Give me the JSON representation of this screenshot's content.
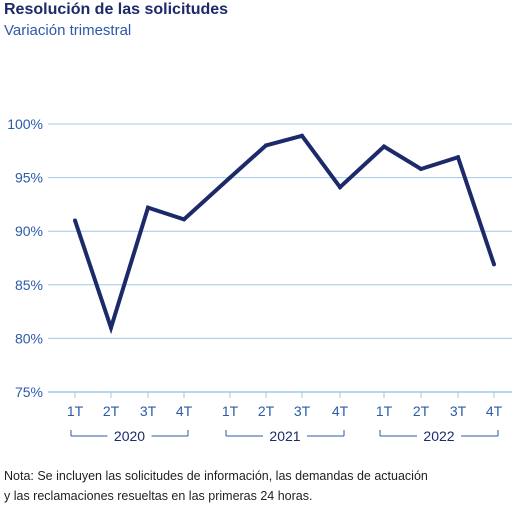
{
  "header": {
    "title": "Resolución de las solicitudes",
    "subtitle": "Variación trimestral"
  },
  "colors": {
    "title": "#1c2a6b",
    "subtitle": "#2b5aa8",
    "line": "#1c2a6b",
    "grid": "#9ec8e6",
    "axis_text": "#2b5aa8"
  },
  "chart_data": {
    "type": "line",
    "title": "Resolución de las solicitudes",
    "subtitle": "Variación trimestral",
    "categories": [
      "1T",
      "2T",
      "3T",
      "4T",
      "1T",
      "2T",
      "3T",
      "4T",
      "1T",
      "2T",
      "3T",
      "4T"
    ],
    "groups": [
      {
        "label": "2020",
        "categories": [
          "1T",
          "2T",
          "3T",
          "4T"
        ]
      },
      {
        "label": "2021",
        "categories": [
          "1T",
          "2T",
          "3T",
          "4T"
        ]
      },
      {
        "label": "2022",
        "categories": [
          "1T",
          "2T",
          "3T",
          "4T"
        ]
      }
    ],
    "values": [
      91.0,
      81.0,
      92.2,
      91.1,
      95.0,
      98.0,
      98.9,
      94.1,
      97.9,
      95.8,
      96.9,
      86.9
    ],
    "ylim": [
      75,
      100
    ],
    "yticks": [
      "75%",
      "80%",
      "85%",
      "90%",
      "95%",
      "100%"
    ],
    "ytick_values": [
      75,
      80,
      85,
      90,
      95,
      100
    ],
    "grid": true,
    "xlabel": "",
    "ylabel": ""
  },
  "note": {
    "line1": "Nota: Se incluyen las solicitudes de información, las demandas de actuación",
    "line2": "y las reclamaciones resueltas en las primeras 24 horas."
  }
}
